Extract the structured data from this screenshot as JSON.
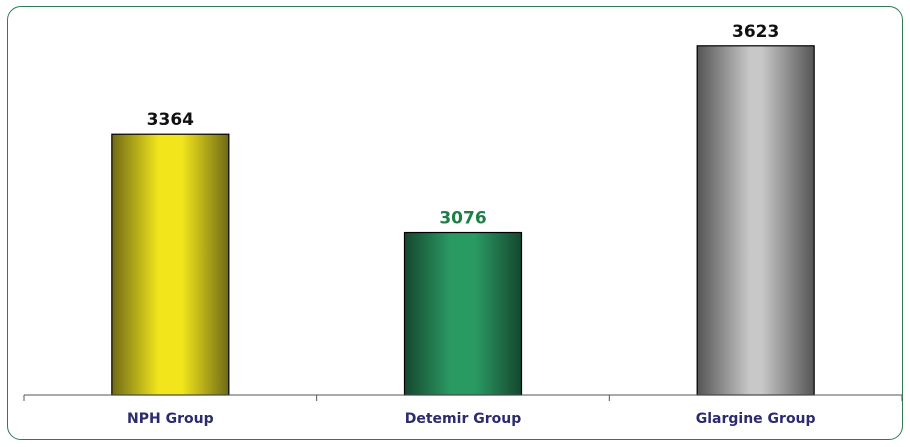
{
  "chart_data": {
    "type": "bar",
    "categories": [
      "NPH Group",
      "Detemir Group",
      "Glargine Group"
    ],
    "values": [
      3364,
      3076,
      3623
    ],
    "data_labels": [
      "3364",
      "3076",
      "3623"
    ],
    "ylim": [
      2600,
      3640
    ],
    "grid": false,
    "legend": "none",
    "colors": {
      "bars": [
        "#f2e51c",
        "#2a9a63",
        "#bdbdbd"
      ],
      "bar_edges": [
        "#7a7418",
        "#1a5c3c",
        "#5a5a5a"
      ],
      "value_labels": [
        "#111111",
        "#1e7e45",
        "#111111"
      ],
      "category_labels": "#2b2b6e",
      "frame": "#2e7d4f"
    }
  }
}
